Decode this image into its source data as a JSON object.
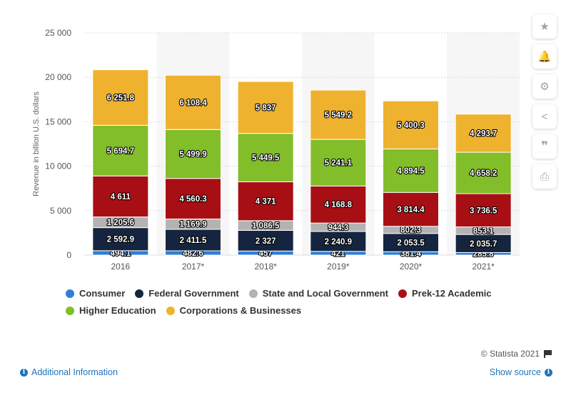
{
  "chart_data": {
    "type": "bar",
    "stacked": true,
    "categories": [
      "2016",
      "2017*",
      "2018*",
      "2019*",
      "2020*",
      "2021*"
    ],
    "series": [
      {
        "name": "Consumer",
        "color": "#2f7ed8",
        "values": [
          494.1,
          482.6,
          457,
          421,
          381.4,
          285.8
        ],
        "labels": [
          "494.1",
          "482.6",
          "457",
          "421",
          "381.4",
          "285.8"
        ]
      },
      {
        "name": "Federal Government",
        "color": "#15253f",
        "values": [
          2592.9,
          2411.5,
          2327,
          2240.9,
          2053.5,
          2035.7
        ],
        "labels": [
          "2 592.9",
          "2 411.5",
          "2 327",
          "2 240.9",
          "2 053.5",
          "2 035.7"
        ]
      },
      {
        "name": "State and Local Government",
        "color": "#b3b3b3",
        "values": [
          1205.6,
          1169.9,
          1086.5,
          944.3,
          802.3,
          853.1
        ],
        "labels": [
          "1 205.6",
          "1 169.9",
          "1 086.5",
          "944.3",
          "802.3",
          "853.1"
        ]
      },
      {
        "name": "Prek-12 Academic",
        "color": "#a80f14",
        "values": [
          4611,
          4560.3,
          4371,
          4168.8,
          3814.4,
          3736.5
        ],
        "labels": [
          "4 611",
          "4 560.3",
          "4 371",
          "4 168.8",
          "3 814.4",
          "3 736.5"
        ]
      },
      {
        "name": "Higher Education",
        "color": "#82bd2a",
        "values": [
          5694.7,
          5499.9,
          5449.5,
          5241.1,
          4894.5,
          4658.2
        ],
        "labels": [
          "5 694.7",
          "5 499.9",
          "5 449.5",
          "5 241.1",
          "4 894.5",
          "4 658.2"
        ]
      },
      {
        "name": "Corporations & Businesses",
        "color": "#efb22e",
        "values": [
          6251.8,
          6108.4,
          5837,
          5549.2,
          5400.3,
          4293.7
        ],
        "labels": [
          "6 251.8",
          "6 108.4",
          "5 837",
          "5 549.2",
          "5 400.3",
          "4 293.7"
        ]
      }
    ],
    "ylabel": "Revenue in billion U.S. dollars",
    "ylim": [
      0,
      25000
    ],
    "yticks": [
      0,
      5000,
      10000,
      15000,
      20000,
      25000
    ],
    "ytick_labels": [
      "0",
      "5 000",
      "10 000",
      "15 000",
      "20 000",
      "25 000"
    ],
    "grid": true,
    "legend_position": "bottom"
  },
  "footer": {
    "credit": "© Statista 2021",
    "additional_info": "Additional Information",
    "show_source": "Show source"
  },
  "toolbar": {
    "icons": [
      "star-icon",
      "bell-icon",
      "gear-icon",
      "share-icon",
      "quote-icon",
      "print-icon"
    ]
  }
}
